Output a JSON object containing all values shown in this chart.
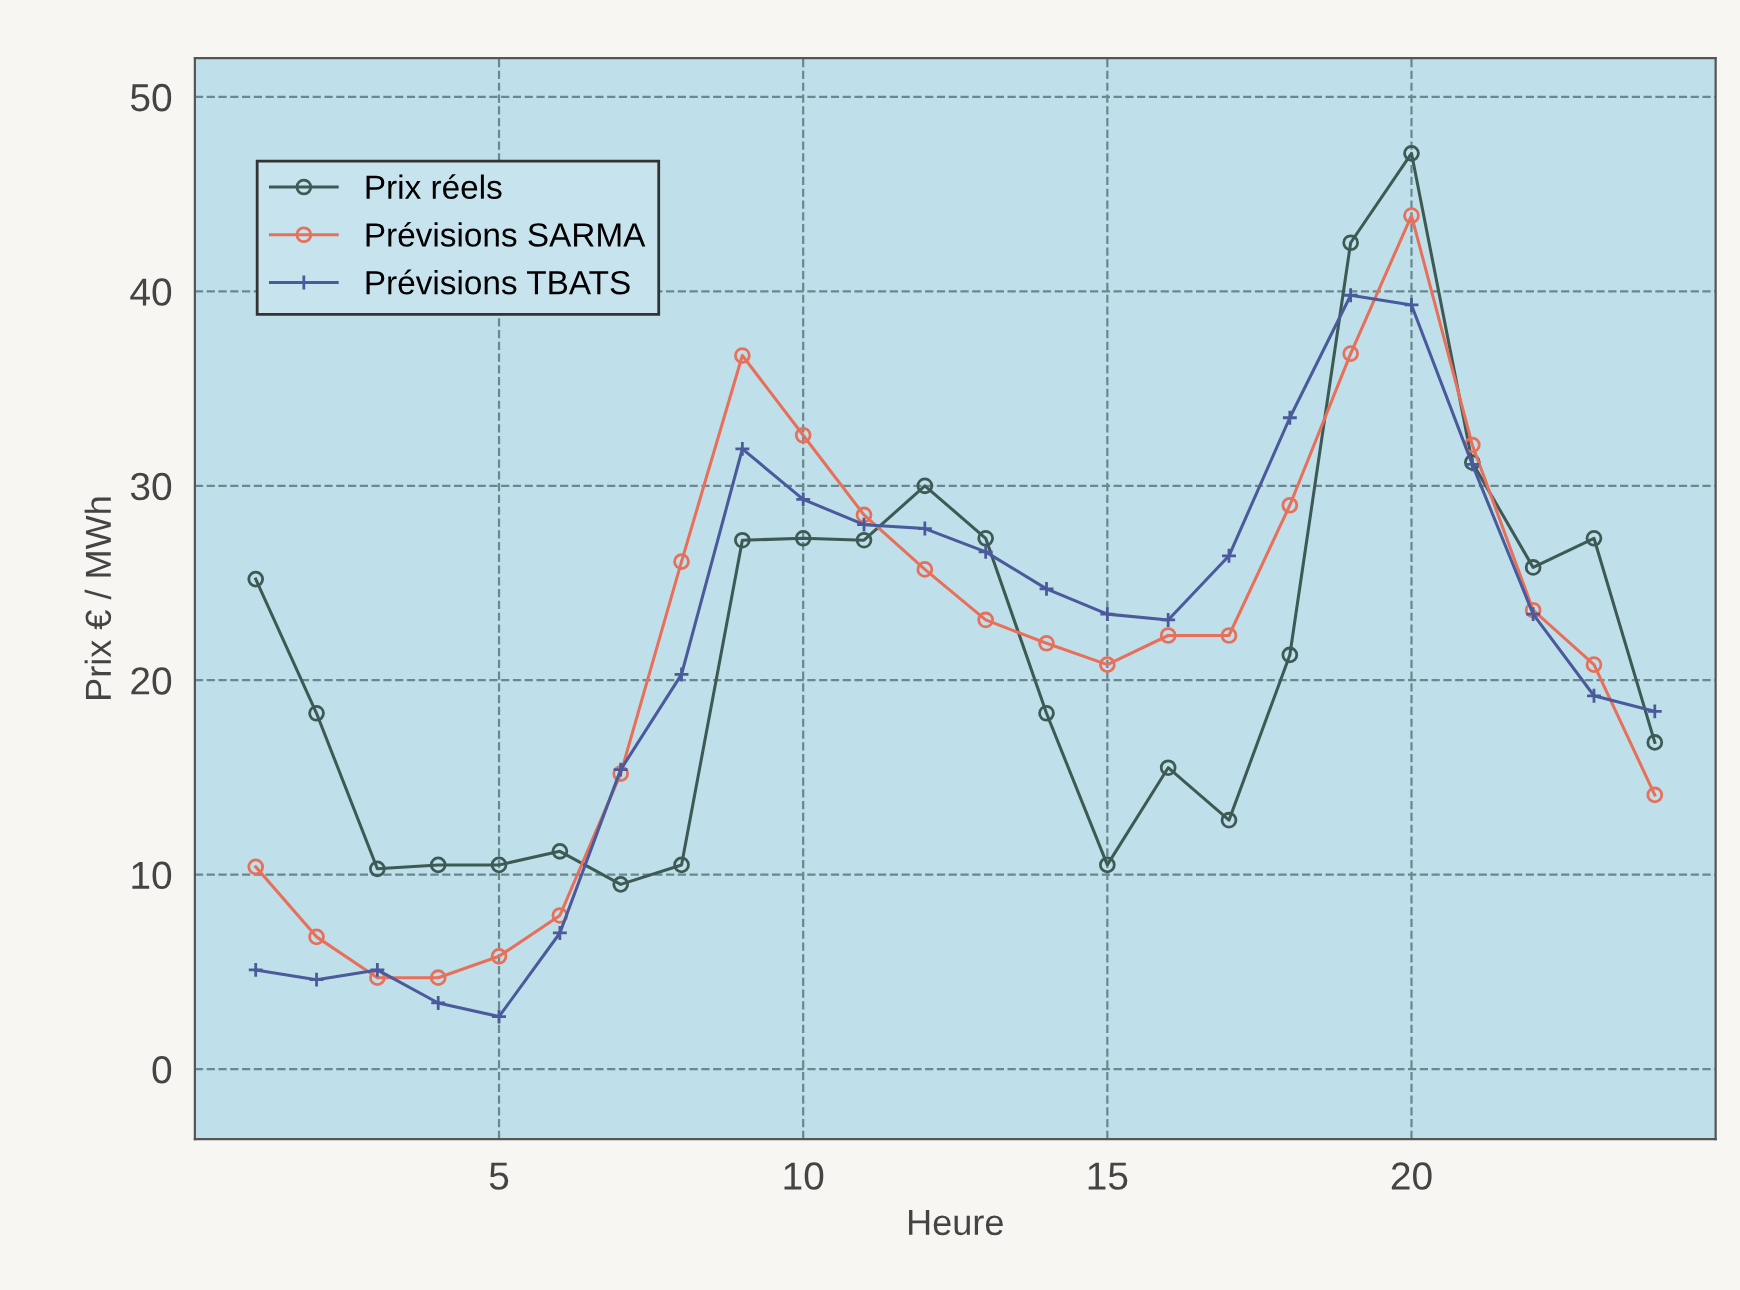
{
  "chart_data": {
    "type": "line",
    "xlabel": "Heure",
    "ylabel": "Prix € / MWh",
    "x": [
      1,
      2,
      3,
      4,
      5,
      6,
      7,
      8,
      9,
      10,
      11,
      12,
      13,
      14,
      15,
      16,
      17,
      18,
      19,
      20,
      21,
      22,
      23,
      24
    ],
    "series": [
      {
        "name": "Prix réels",
        "color": "#3d5a55",
        "marker": "circle",
        "values": [
          25.2,
          18.3,
          10.3,
          10.5,
          10.5,
          11.2,
          9.5,
          10.5,
          27.2,
          27.3,
          27.2,
          30.0,
          27.3,
          18.3,
          10.5,
          15.5,
          12.8,
          21.3,
          42.5,
          47.1,
          31.2,
          25.8,
          27.3,
          16.8
        ]
      },
      {
        "name": "Prévisions SARMA",
        "color": "#e8705a",
        "marker": "circle",
        "values": [
          10.4,
          6.8,
          4.7,
          4.7,
          5.8,
          7.9,
          15.2,
          26.1,
          36.7,
          32.6,
          28.5,
          25.7,
          23.1,
          21.9,
          20.8,
          22.3,
          22.3,
          29.0,
          36.8,
          43.9,
          32.1,
          23.6,
          20.8,
          14.1
        ]
      },
      {
        "name": "Prévisions TBATS",
        "color": "#4a5a9a",
        "marker": "cross",
        "values": [
          5.1,
          4.6,
          5.1,
          3.4,
          2.7,
          7.0,
          15.4,
          20.3,
          31.9,
          29.3,
          28.0,
          27.8,
          26.6,
          24.7,
          23.4,
          23.1,
          26.4,
          33.5,
          39.8,
          39.3,
          31.1,
          23.4,
          19.2,
          18.4
        ]
      }
    ],
    "xlim": [
      0,
      25
    ],
    "xticks": [
      5,
      10,
      15,
      20
    ],
    "ylim": [
      -3.6,
      52
    ],
    "yticks": [
      0,
      10,
      20,
      30,
      40,
      50
    ],
    "grid": true,
    "legend": "top left",
    "line_style": "solid"
  }
}
